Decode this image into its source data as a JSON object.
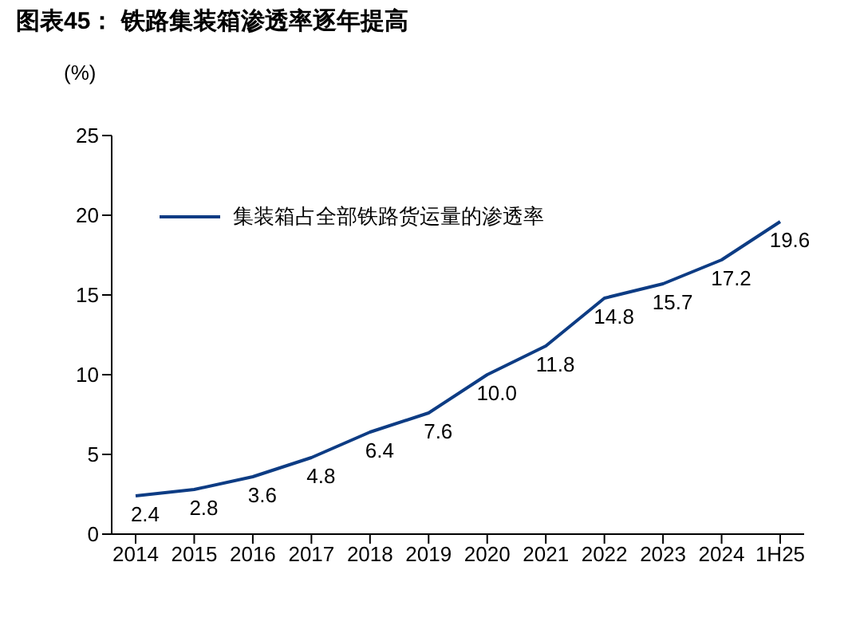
{
  "chart_data": {
    "type": "line",
    "title": "图表45：  铁路集装箱渗透率逐年提高",
    "ylabel": "(%)",
    "categories": [
      "2014",
      "2015",
      "2016",
      "2017",
      "2018",
      "2019",
      "2020",
      "2021",
      "2022",
      "2023",
      "2024",
      "1H25"
    ],
    "series": [
      {
        "name": "集装箱占全部铁路货运量的渗透率",
        "color": "#0d3c84",
        "values": [
          2.4,
          2.8,
          3.6,
          4.8,
          6.4,
          7.6,
          10.0,
          11.8,
          14.8,
          15.7,
          17.2,
          19.6
        ],
        "value_labels": [
          "2.4",
          "2.8",
          "3.6",
          "4.8",
          "6.4",
          "7.6",
          "10.0",
          "11.8",
          "14.8",
          "15.7",
          "17.2",
          "19.6"
        ]
      }
    ],
    "ylim": [
      0,
      25
    ],
    "yticks": [
      0,
      5,
      10,
      15,
      20,
      25
    ],
    "grid": false,
    "legend": "top left",
    "marker": "none",
    "line_style": "solid"
  }
}
